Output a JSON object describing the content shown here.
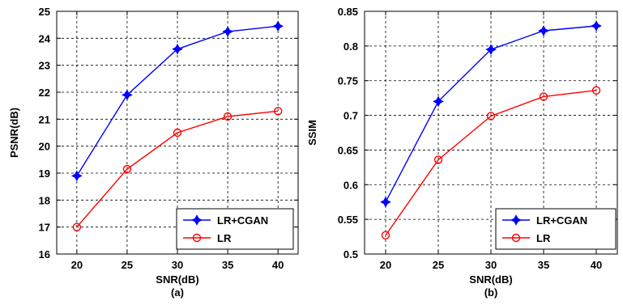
{
  "chart_data": [
    {
      "type": "line",
      "caption": "(a)",
      "xlabel": "SNR(dB)",
      "ylabel": "PSNR(dB)",
      "x": [
        20,
        25,
        30,
        35,
        40
      ],
      "xlim": [
        18,
        42
      ],
      "ylim": [
        16,
        25
      ],
      "xticks": [
        "20",
        "25",
        "30",
        "35",
        "40"
      ],
      "yticks": [
        "16",
        "17",
        "18",
        "19",
        "20",
        "21",
        "22",
        "23",
        "24",
        "25"
      ],
      "grid": true,
      "legend_position": "bottom-right",
      "series": [
        {
          "name": "LR+CGAN",
          "color": "#0000ff",
          "marker": "star",
          "values": [
            18.9,
            21.9,
            23.6,
            24.25,
            24.45
          ]
        },
        {
          "name": "LR",
          "color": "#ff0000",
          "marker": "circle",
          "values": [
            17.0,
            19.15,
            20.5,
            21.1,
            21.3
          ]
        }
      ]
    },
    {
      "type": "line",
      "caption": "(b)",
      "xlabel": "SNR(dB)",
      "ylabel": "SSIM",
      "x": [
        20,
        25,
        30,
        35,
        40
      ],
      "xlim": [
        18,
        42
      ],
      "ylim": [
        0.5,
        0.85
      ],
      "xticks": [
        "20",
        "25",
        "30",
        "35",
        "40"
      ],
      "yticks": [
        "0.5",
        "0.55",
        "0.6",
        "0.65",
        "0.7",
        "0.75",
        "0.8",
        "0.85"
      ],
      "grid": true,
      "legend_position": "bottom-right",
      "series": [
        {
          "name": "LR+CGAN",
          "color": "#0000ff",
          "marker": "star",
          "values": [
            0.575,
            0.72,
            0.795,
            0.822,
            0.829
          ]
        },
        {
          "name": "LR",
          "color": "#ff0000",
          "marker": "circle",
          "values": [
            0.527,
            0.636,
            0.699,
            0.727,
            0.736
          ]
        }
      ]
    }
  ]
}
